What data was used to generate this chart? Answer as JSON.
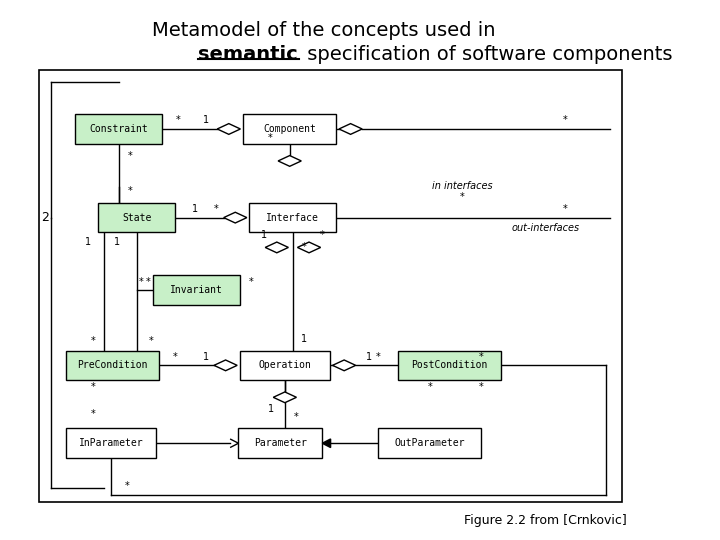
{
  "title_line1": "Metamodel of the concepts used in",
  "title_line2_bold": "semantic",
  "title_line2_rest": " specification of software components",
  "figure_caption": "Figure 2.2 from [Crnkovic]",
  "bg_color": "#ffffff",
  "green_fill": "#c8f0c8",
  "white_fill": "#ffffff",
  "boxes": {
    "Constraint": [
      0.115,
      0.735,
      0.135,
      0.055
    ],
    "Component": [
      0.375,
      0.735,
      0.145,
      0.055
    ],
    "State": [
      0.15,
      0.57,
      0.12,
      0.055
    ],
    "Interface": [
      0.385,
      0.57,
      0.135,
      0.055
    ],
    "Invariant": [
      0.235,
      0.435,
      0.135,
      0.055
    ],
    "PreCondition": [
      0.1,
      0.295,
      0.145,
      0.055
    ],
    "Operation": [
      0.37,
      0.295,
      0.14,
      0.055
    ],
    "PostCondition": [
      0.615,
      0.295,
      0.16,
      0.055
    ],
    "InParameter": [
      0.1,
      0.15,
      0.14,
      0.055
    ],
    "Parameter": [
      0.368,
      0.15,
      0.13,
      0.055
    ],
    "OutParameter": [
      0.585,
      0.15,
      0.16,
      0.055
    ]
  },
  "green_boxes": [
    "Constraint",
    "State",
    "Invariant",
    "PreCondition",
    "PostCondition"
  ],
  "white_boxes": [
    "Component",
    "Interface",
    "Operation",
    "InParameter",
    "Parameter",
    "OutParameter"
  ]
}
